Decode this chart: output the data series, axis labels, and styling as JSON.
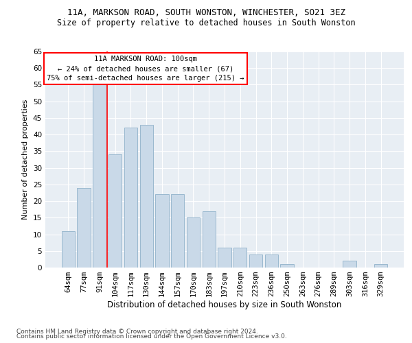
{
  "title1": "11A, MARKSON ROAD, SOUTH WONSTON, WINCHESTER, SO21 3EZ",
  "title2": "Size of property relative to detached houses in South Wonston",
  "xlabel": "Distribution of detached houses by size in South Wonston",
  "ylabel": "Number of detached properties",
  "categories": [
    "64sqm",
    "77sqm",
    "91sqm",
    "104sqm",
    "117sqm",
    "130sqm",
    "144sqm",
    "157sqm",
    "170sqm",
    "183sqm",
    "197sqm",
    "210sqm",
    "223sqm",
    "236sqm",
    "250sqm",
    "263sqm",
    "276sqm",
    "289sqm",
    "303sqm",
    "316sqm",
    "329sqm"
  ],
  "values": [
    11,
    24,
    55,
    34,
    42,
    43,
    22,
    22,
    15,
    17,
    6,
    6,
    4,
    4,
    1,
    0,
    0,
    0,
    2,
    0,
    1
  ],
  "bar_color": "#c9d9e8",
  "bar_edge_color": "#9ab8cf",
  "vline_color": "red",
  "vline_x_index": 2.5,
  "annotation_text": "11A MARKSON ROAD: 100sqm\n← 24% of detached houses are smaller (67)\n75% of semi-detached houses are larger (215) →",
  "annotation_box_color": "white",
  "annotation_box_edge_color": "red",
  "ylim": [
    0,
    65
  ],
  "yticks": [
    0,
    5,
    10,
    15,
    20,
    25,
    30,
    35,
    40,
    45,
    50,
    55,
    60,
    65
  ],
  "background_color": "#e8eef4",
  "grid_color": "white",
  "footer1": "Contains HM Land Registry data © Crown copyright and database right 2024.",
  "footer2": "Contains public sector information licensed under the Open Government Licence v3.0.",
  "title1_fontsize": 9,
  "title2_fontsize": 8.5,
  "xlabel_fontsize": 8.5,
  "ylabel_fontsize": 8,
  "tick_fontsize": 7.5,
  "annotation_fontsize": 7.5,
  "footer_fontsize": 6.5
}
